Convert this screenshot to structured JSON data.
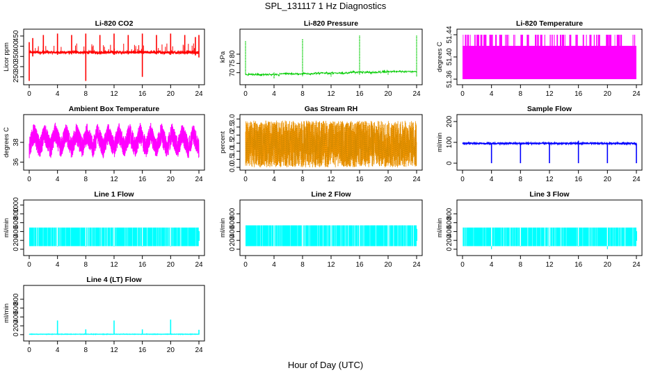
{
  "figure": {
    "title": "SPL_131117  1 Hz Diagnostics",
    "xlabel": "Hour of Day (UTC)"
  },
  "chart_data": [
    {
      "type": "line",
      "title": "Li-820 CO2",
      "ylabel": "Licor ppm",
      "color": "#ff0000",
      "xlim": [
        0,
        24
      ],
      "xticks": [
        0,
        4,
        8,
        12,
        16,
        20,
        24
      ],
      "ylim": [
        225,
        470
      ],
      "yticks": [
        250,
        300,
        350,
        400,
        450
      ],
      "baseline": 370,
      "noise": 6,
      "style": "line",
      "events": [
        {
          "x": 0.0,
          "hi": 420,
          "lo": 230
        },
        {
          "x": 0.5,
          "hi": 440,
          "lo": 350
        },
        {
          "x": 2.0,
          "hi": 455,
          "lo": 360
        },
        {
          "x": 4.0,
          "hi": 462,
          "lo": 358
        },
        {
          "x": 6.0,
          "hi": 455,
          "lo": 360
        },
        {
          "x": 8.0,
          "hi": 462,
          "lo": 230
        },
        {
          "x": 10.0,
          "hi": 455,
          "lo": 360
        },
        {
          "x": 12.0,
          "hi": 462,
          "lo": 358
        },
        {
          "x": 14.0,
          "hi": 455,
          "lo": 360
        },
        {
          "x": 16.0,
          "hi": 462,
          "lo": 250
        },
        {
          "x": 18.0,
          "hi": 455,
          "lo": 360
        },
        {
          "x": 20.0,
          "hi": 462,
          "lo": 358
        },
        {
          "x": 22.0,
          "hi": 455,
          "lo": 360
        },
        {
          "x": 23.5,
          "hi": 445,
          "lo": 355
        },
        {
          "x": 24.0,
          "hi": 455,
          "lo": 345
        }
      ]
    },
    {
      "type": "line",
      "title": "Li-820 Pressure",
      "ylabel": "kPa",
      "color": "#00cc00",
      "xlim": [
        0,
        24
      ],
      "xticks": [
        0,
        4,
        8,
        12,
        16,
        20,
        24
      ],
      "ylim": [
        65,
        92
      ],
      "yticks": [
        70,
        75,
        80
      ],
      "baseline_start": 69.0,
      "baseline_end": 71.0,
      "noise": 0.3,
      "style": "dotted",
      "events": [
        {
          "x": 0.0,
          "hi": 87,
          "lo": 69
        },
        {
          "x": 4.0,
          "hi": 70,
          "lo": 67
        },
        {
          "x": 8.0,
          "hi": 88,
          "lo": 68
        },
        {
          "x": 12.0,
          "hi": 70,
          "lo": 68
        },
        {
          "x": 16.0,
          "hi": 90,
          "lo": 69
        },
        {
          "x": 20.0,
          "hi": 71,
          "lo": 69
        },
        {
          "x": 24.0,
          "hi": 90,
          "lo": 68
        }
      ]
    },
    {
      "type": "line",
      "title": "Li-820 Temperature",
      "ylabel": "degrees C",
      "color": "#ff00ff",
      "xlim": [
        0,
        24
      ],
      "xticks": [
        0,
        4,
        8,
        12,
        16,
        20,
        24
      ],
      "ylim": [
        51.355,
        51.445
      ],
      "yticks": [
        51.36,
        51.4,
        51.44
      ],
      "levels": [
        51.36,
        51.38,
        51.4,
        51.42,
        51.44
      ],
      "style": "quantized"
    },
    {
      "type": "line",
      "title": "Ambient Box Temperature",
      "ylabel": "degrees C",
      "color": "#ff00ff",
      "xlim": [
        0,
        24
      ],
      "xticks": [
        0,
        4,
        8,
        12,
        16,
        20,
        24
      ],
      "ylim": [
        35.6,
        39.4
      ],
      "yticks": [
        36.0,
        37.5
      ],
      "baseline": 37.5,
      "amplitude": 1.2,
      "cycles": 16,
      "style": "sawtooth"
    },
    {
      "type": "line",
      "title": "Gas Stream RH",
      "ylabel": "percent",
      "color": "#ff9900",
      "xlim": [
        0,
        24
      ],
      "xticks": [
        0,
        4,
        8,
        12,
        16,
        20,
        24
      ],
      "ylim": [
        0,
        3.1
      ],
      "yticks": [
        0.0,
        0.5,
        1.0,
        1.5,
        2.0,
        2.5,
        3.0
      ],
      "baseline": 1.5,
      "range_lo": 0.0,
      "range_hi": 2.9,
      "style": "noise"
    },
    {
      "type": "line",
      "title": "Sample Flow",
      "ylabel": "ml/min",
      "color": "#0000ff",
      "xlim": [
        0,
        24
      ],
      "xticks": [
        0,
        4,
        8,
        12,
        16,
        20,
        24
      ],
      "ylim": [
        -20,
        220
      ],
      "yticks": [
        0,
        100,
        200
      ],
      "baseline": 95,
      "noise": 3,
      "style": "line",
      "events": [
        {
          "x": 4.0,
          "hi": 95,
          "lo": 0
        },
        {
          "x": 8.0,
          "hi": 95,
          "lo": 0
        },
        {
          "x": 12.0,
          "hi": 95,
          "lo": 0
        },
        {
          "x": 16.0,
          "hi": 108,
          "lo": 0
        },
        {
          "x": 20.0,
          "hi": 95,
          "lo": 0
        },
        {
          "x": 24.0,
          "hi": 95,
          "lo": 0
        }
      ]
    },
    {
      "type": "line",
      "title": "Line 1 Flow",
      "ylabel": "ml/min",
      "color": "#00ffff",
      "xlim": [
        0,
        24
      ],
      "xticks": [
        0,
        4,
        8,
        12,
        16,
        20,
        24
      ],
      "ylim": [
        -80,
        1050
      ],
      "yticks": [
        0,
        200,
        400,
        600,
        800,
        1000
      ],
      "range_lo": 70,
      "range_hi": 490,
      "style": "band",
      "events": [
        {
          "x": 4.0,
          "hi": 490,
          "lo": 60
        },
        {
          "x": 8.0,
          "hi": 490,
          "lo": 60
        },
        {
          "x": 12.0,
          "hi": 490,
          "lo": 60
        },
        {
          "x": 16.0,
          "hi": 490,
          "lo": 60
        },
        {
          "x": 20.0,
          "hi": 490,
          "lo": 60
        }
      ]
    },
    {
      "type": "line",
      "title": "Line 2 Flow",
      "ylabel": "ml/min",
      "color": "#00ffff",
      "xlim": [
        0,
        24
      ],
      "xticks": [
        0,
        4,
        8,
        12,
        16,
        20,
        24
      ],
      "ylim": [
        -80,
        1050
      ],
      "yticks": [
        0,
        200,
        400,
        600,
        800
      ],
      "range_lo": 70,
      "range_hi": 540,
      "style": "band",
      "events": [
        {
          "x": 4.0,
          "hi": 540,
          "lo": 70
        },
        {
          "x": 8.0,
          "hi": 540,
          "lo": 70
        },
        {
          "x": 12.0,
          "hi": 540,
          "lo": 70
        },
        {
          "x": 16.0,
          "hi": 540,
          "lo": 70
        },
        {
          "x": 20.0,
          "hi": 540,
          "lo": 70
        }
      ]
    },
    {
      "type": "line",
      "title": "Line 3 Flow",
      "ylabel": "ml/min",
      "color": "#00ffff",
      "xlim": [
        0,
        24
      ],
      "xticks": [
        0,
        4,
        8,
        12,
        16,
        20,
        24
      ],
      "ylim": [
        -80,
        1050
      ],
      "yticks": [
        0,
        200,
        400,
        600,
        800
      ],
      "range_lo": 70,
      "range_hi": 490,
      "style": "band",
      "events": [
        {
          "x": 4.0,
          "hi": 490,
          "lo": 0
        },
        {
          "x": 8.0,
          "hi": 490,
          "lo": 60
        },
        {
          "x": 12.0,
          "hi": 490,
          "lo": 60
        },
        {
          "x": 16.0,
          "hi": 490,
          "lo": 60
        },
        {
          "x": 20.0,
          "hi": 490,
          "lo": 0
        }
      ]
    },
    {
      "type": "line",
      "title": "Line 4 (LT) Flow",
      "ylabel": "ml/min",
      "color": "#00ffff",
      "xlim": [
        0,
        24
      ],
      "xticks": [
        0,
        4,
        8,
        12,
        16,
        20,
        24
      ],
      "ylim": [
        -80,
        1050
      ],
      "yticks": [
        0,
        200,
        400,
        600,
        800
      ],
      "baseline": 10,
      "noise": 4,
      "style": "line",
      "events": [
        {
          "x": 4.0,
          "hi": 320,
          "lo": 0
        },
        {
          "x": 8.0,
          "hi": 120,
          "lo": 0
        },
        {
          "x": 12.0,
          "hi": 320,
          "lo": 0
        },
        {
          "x": 16.0,
          "hi": 120,
          "lo": 0
        },
        {
          "x": 20.0,
          "hi": 340,
          "lo": 0
        },
        {
          "x": 24.0,
          "hi": 110,
          "lo": 0
        }
      ]
    }
  ]
}
